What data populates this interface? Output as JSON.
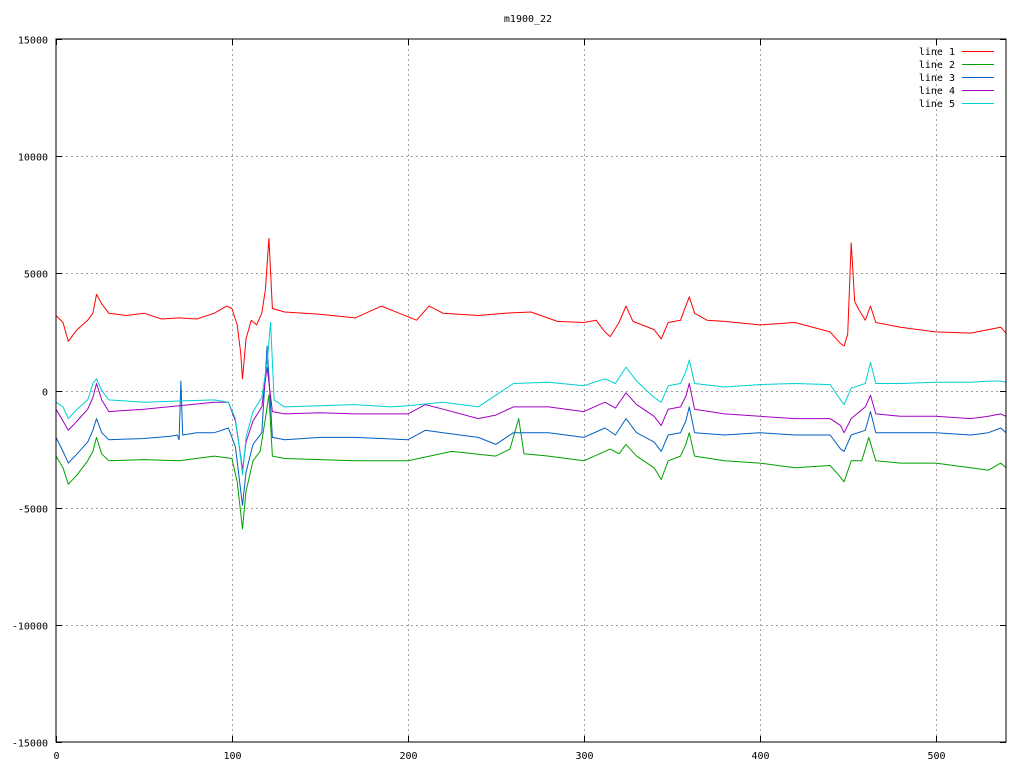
{
  "chart_data": {
    "type": "line",
    "title": "m1900_22",
    "xlabel": "",
    "ylabel": "",
    "xlim": [
      0,
      540
    ],
    "ylim": [
      -15000,
      15000
    ],
    "x_ticks": [
      0,
      100,
      200,
      300,
      400,
      500
    ],
    "y_ticks": [
      -15000,
      -10000,
      -5000,
      0,
      5000,
      10000,
      15000
    ],
    "grid": true,
    "legend_position": "top-right",
    "series": [
      {
        "name": "line 1",
        "color": "#ff0000",
        "points": [
          [
            0,
            3200
          ],
          [
            4,
            2900
          ],
          [
            7,
            2100
          ],
          [
            12,
            2600
          ],
          [
            18,
            3000
          ],
          [
            21,
            3300
          ],
          [
            23,
            4100
          ],
          [
            26,
            3700
          ],
          [
            30,
            3300
          ],
          [
            40,
            3200
          ],
          [
            50,
            3300
          ],
          [
            60,
            3050
          ],
          [
            70,
            3100
          ],
          [
            80,
            3050
          ],
          [
            90,
            3300
          ],
          [
            97,
            3600
          ],
          [
            100,
            3500
          ],
          [
            103,
            2800
          ],
          [
            105,
            1600
          ],
          [
            106,
            500
          ],
          [
            108,
            2200
          ],
          [
            111,
            3000
          ],
          [
            114,
            2800
          ],
          [
            117,
            3300
          ],
          [
            119,
            4300
          ],
          [
            121,
            6500
          ],
          [
            123,
            3500
          ],
          [
            130,
            3350
          ],
          [
            150,
            3250
          ],
          [
            170,
            3100
          ],
          [
            185,
            3600
          ],
          [
            195,
            3300
          ],
          [
            205,
            3000
          ],
          [
            212,
            3600
          ],
          [
            220,
            3300
          ],
          [
            240,
            3200
          ],
          [
            255,
            3300
          ],
          [
            270,
            3350
          ],
          [
            285,
            2950
          ],
          [
            300,
            2900
          ],
          [
            307,
            3000
          ],
          [
            312,
            2500
          ],
          [
            315,
            2300
          ],
          [
            320,
            2900
          ],
          [
            324,
            3600
          ],
          [
            328,
            2950
          ],
          [
            340,
            2600
          ],
          [
            344,
            2200
          ],
          [
            348,
            2900
          ],
          [
            355,
            3000
          ],
          [
            358,
            3600
          ],
          [
            360,
            4000
          ],
          [
            363,
            3300
          ],
          [
            370,
            3000
          ],
          [
            380,
            2950
          ],
          [
            400,
            2800
          ],
          [
            420,
            2900
          ],
          [
            440,
            2500
          ],
          [
            446,
            2000
          ],
          [
            448,
            1900
          ],
          [
            450,
            2400
          ],
          [
            452,
            6300
          ],
          [
            454,
            3800
          ],
          [
            456,
            3500
          ],
          [
            460,
            3000
          ],
          [
            463,
            3600
          ],
          [
            466,
            2900
          ],
          [
            480,
            2700
          ],
          [
            500,
            2500
          ],
          [
            520,
            2450
          ],
          [
            530,
            2600
          ],
          [
            537,
            2700
          ],
          [
            540,
            2450
          ]
        ]
      },
      {
        "name": "line 2",
        "color": "#00a000",
        "points": [
          [
            0,
            -2800
          ],
          [
            4,
            -3300
          ],
          [
            7,
            -4000
          ],
          [
            12,
            -3600
          ],
          [
            18,
            -3000
          ],
          [
            21,
            -2600
          ],
          [
            23,
            -2000
          ],
          [
            26,
            -2700
          ],
          [
            30,
            -3000
          ],
          [
            50,
            -2950
          ],
          [
            70,
            -3000
          ],
          [
            90,
            -2800
          ],
          [
            100,
            -2900
          ],
          [
            103,
            -3900
          ],
          [
            106,
            -5900
          ],
          [
            108,
            -4300
          ],
          [
            112,
            -3000
          ],
          [
            116,
            -2600
          ],
          [
            119,
            -1200
          ],
          [
            121,
            -200
          ],
          [
            123,
            -2800
          ],
          [
            130,
            -2900
          ],
          [
            170,
            -3000
          ],
          [
            200,
            -3000
          ],
          [
            225,
            -2600
          ],
          [
            250,
            -2800
          ],
          [
            258,
            -2500
          ],
          [
            263,
            -1200
          ],
          [
            266,
            -2700
          ],
          [
            280,
            -2800
          ],
          [
            300,
            -3000
          ],
          [
            315,
            -2500
          ],
          [
            320,
            -2700
          ],
          [
            324,
            -2300
          ],
          [
            330,
            -2800
          ],
          [
            340,
            -3300
          ],
          [
            344,
            -3800
          ],
          [
            348,
            -3000
          ],
          [
            355,
            -2800
          ],
          [
            358,
            -2300
          ],
          [
            360,
            -1800
          ],
          [
            363,
            -2800
          ],
          [
            380,
            -3000
          ],
          [
            400,
            -3100
          ],
          [
            420,
            -3300
          ],
          [
            440,
            -3200
          ],
          [
            446,
            -3700
          ],
          [
            448,
            -3900
          ],
          [
            452,
            -3000
          ],
          [
            458,
            -3000
          ],
          [
            462,
            -2000
          ],
          [
            466,
            -3000
          ],
          [
            480,
            -3100
          ],
          [
            500,
            -3100
          ],
          [
            520,
            -3300
          ],
          [
            530,
            -3400
          ],
          [
            537,
            -3100
          ],
          [
            540,
            -3300
          ]
        ]
      },
      {
        "name": "line 3",
        "color": "#0060c0",
        "points": [
          [
            0,
            -2000
          ],
          [
            4,
            -2600
          ],
          [
            7,
            -3100
          ],
          [
            12,
            -2700
          ],
          [
            18,
            -2200
          ],
          [
            21,
            -1700
          ],
          [
            23,
            -1200
          ],
          [
            26,
            -1800
          ],
          [
            30,
            -2100
          ],
          [
            50,
            -2050
          ],
          [
            65,
            -1950
          ],
          [
            69,
            -1900
          ],
          [
            70,
            -2100
          ],
          [
            71,
            400
          ],
          [
            72,
            -1900
          ],
          [
            80,
            -1800
          ],
          [
            90,
            -1800
          ],
          [
            98,
            -1600
          ],
          [
            102,
            -2400
          ],
          [
            106,
            -4900
          ],
          [
            108,
            -3500
          ],
          [
            112,
            -2300
          ],
          [
            117,
            -1800
          ],
          [
            120,
            1900
          ],
          [
            123,
            -2000
          ],
          [
            130,
            -2100
          ],
          [
            150,
            -2000
          ],
          [
            170,
            -2000
          ],
          [
            200,
            -2100
          ],
          [
            210,
            -1700
          ],
          [
            220,
            -1800
          ],
          [
            240,
            -2000
          ],
          [
            250,
            -2300
          ],
          [
            260,
            -1800
          ],
          [
            280,
            -1800
          ],
          [
            300,
            -2000
          ],
          [
            312,
            -1600
          ],
          [
            318,
            -1900
          ],
          [
            324,
            -1200
          ],
          [
            330,
            -1800
          ],
          [
            340,
            -2200
          ],
          [
            344,
            -2600
          ],
          [
            348,
            -1900
          ],
          [
            355,
            -1800
          ],
          [
            358,
            -1300
          ],
          [
            360,
            -700
          ],
          [
            363,
            -1800
          ],
          [
            380,
            -1900
          ],
          [
            400,
            -1800
          ],
          [
            420,
            -1900
          ],
          [
            440,
            -1900
          ],
          [
            446,
            -2500
          ],
          [
            448,
            -2600
          ],
          [
            452,
            -1900
          ],
          [
            460,
            -1700
          ],
          [
            463,
            -900
          ],
          [
            466,
            -1800
          ],
          [
            480,
            -1800
          ],
          [
            500,
            -1800
          ],
          [
            520,
            -1900
          ],
          [
            530,
            -1800
          ],
          [
            537,
            -1600
          ],
          [
            540,
            -1800
          ]
        ]
      },
      {
        "name": "line 4",
        "color": "#a000c0",
        "points": [
          [
            0,
            -800
          ],
          [
            4,
            -1300
          ],
          [
            7,
            -1700
          ],
          [
            12,
            -1300
          ],
          [
            18,
            -800
          ],
          [
            21,
            -300
          ],
          [
            23,
            300
          ],
          [
            26,
            -400
          ],
          [
            30,
            -900
          ],
          [
            50,
            -800
          ],
          [
            70,
            -650
          ],
          [
            90,
            -500
          ],
          [
            98,
            -500
          ],
          [
            102,
            -1300
          ],
          [
            105,
            -2800
          ],
          [
            106,
            -3400
          ],
          [
            108,
            -2200
          ],
          [
            112,
            -1300
          ],
          [
            117,
            -700
          ],
          [
            120,
            1000
          ],
          [
            123,
            -900
          ],
          [
            130,
            -1000
          ],
          [
            150,
            -950
          ],
          [
            170,
            -1000
          ],
          [
            200,
            -1000
          ],
          [
            210,
            -600
          ],
          [
            220,
            -800
          ],
          [
            240,
            -1200
          ],
          [
            250,
            -1050
          ],
          [
            260,
            -700
          ],
          [
            280,
            -700
          ],
          [
            300,
            -900
          ],
          [
            312,
            -500
          ],
          [
            318,
            -750
          ],
          [
            324,
            -100
          ],
          [
            330,
            -600
          ],
          [
            340,
            -1100
          ],
          [
            344,
            -1500
          ],
          [
            348,
            -800
          ],
          [
            355,
            -700
          ],
          [
            358,
            -250
          ],
          [
            360,
            300
          ],
          [
            363,
            -800
          ],
          [
            380,
            -1000
          ],
          [
            400,
            -1100
          ],
          [
            420,
            -1200
          ],
          [
            440,
            -1200
          ],
          [
            446,
            -1500
          ],
          [
            448,
            -1800
          ],
          [
            452,
            -1200
          ],
          [
            460,
            -700
          ],
          [
            463,
            -200
          ],
          [
            466,
            -1000
          ],
          [
            480,
            -1100
          ],
          [
            500,
            -1100
          ],
          [
            520,
            -1200
          ],
          [
            530,
            -1100
          ],
          [
            537,
            -1000
          ],
          [
            540,
            -1100
          ]
        ]
      },
      {
        "name": "line 5",
        "color": "#00d0d0",
        "points": [
          [
            0,
            -500
          ],
          [
            4,
            -700
          ],
          [
            7,
            -1200
          ],
          [
            12,
            -800
          ],
          [
            18,
            -400
          ],
          [
            21,
            300
          ],
          [
            23,
            500
          ],
          [
            26,
            0
          ],
          [
            30,
            -400
          ],
          [
            50,
            -500
          ],
          [
            70,
            -450
          ],
          [
            90,
            -400
          ],
          [
            98,
            -500
          ],
          [
            102,
            -1200
          ],
          [
            105,
            -2900
          ],
          [
            106,
            -3600
          ],
          [
            108,
            -2000
          ],
          [
            112,
            -900
          ],
          [
            117,
            -300
          ],
          [
            120,
            1200
          ],
          [
            122,
            2900
          ],
          [
            124,
            -400
          ],
          [
            130,
            -700
          ],
          [
            150,
            -650
          ],
          [
            170,
            -600
          ],
          [
            190,
            -700
          ],
          [
            200,
            -650
          ],
          [
            220,
            -500
          ],
          [
            240,
            -700
          ],
          [
            250,
            -200
          ],
          [
            260,
            300
          ],
          [
            280,
            350
          ],
          [
            300,
            200
          ],
          [
            312,
            500
          ],
          [
            318,
            300
          ],
          [
            324,
            1000
          ],
          [
            330,
            400
          ],
          [
            340,
            -300
          ],
          [
            344,
            -500
          ],
          [
            348,
            200
          ],
          [
            355,
            300
          ],
          [
            358,
            800
          ],
          [
            360,
            1300
          ],
          [
            363,
            300
          ],
          [
            380,
            150
          ],
          [
            400,
            250
          ],
          [
            420,
            300
          ],
          [
            440,
            250
          ],
          [
            446,
            -400
          ],
          [
            448,
            -600
          ],
          [
            452,
            100
          ],
          [
            460,
            300
          ],
          [
            463,
            1200
          ],
          [
            466,
            300
          ],
          [
            480,
            300
          ],
          [
            500,
            350
          ],
          [
            520,
            350
          ],
          [
            530,
            400
          ],
          [
            537,
            400
          ],
          [
            540,
            350
          ]
        ]
      }
    ]
  }
}
